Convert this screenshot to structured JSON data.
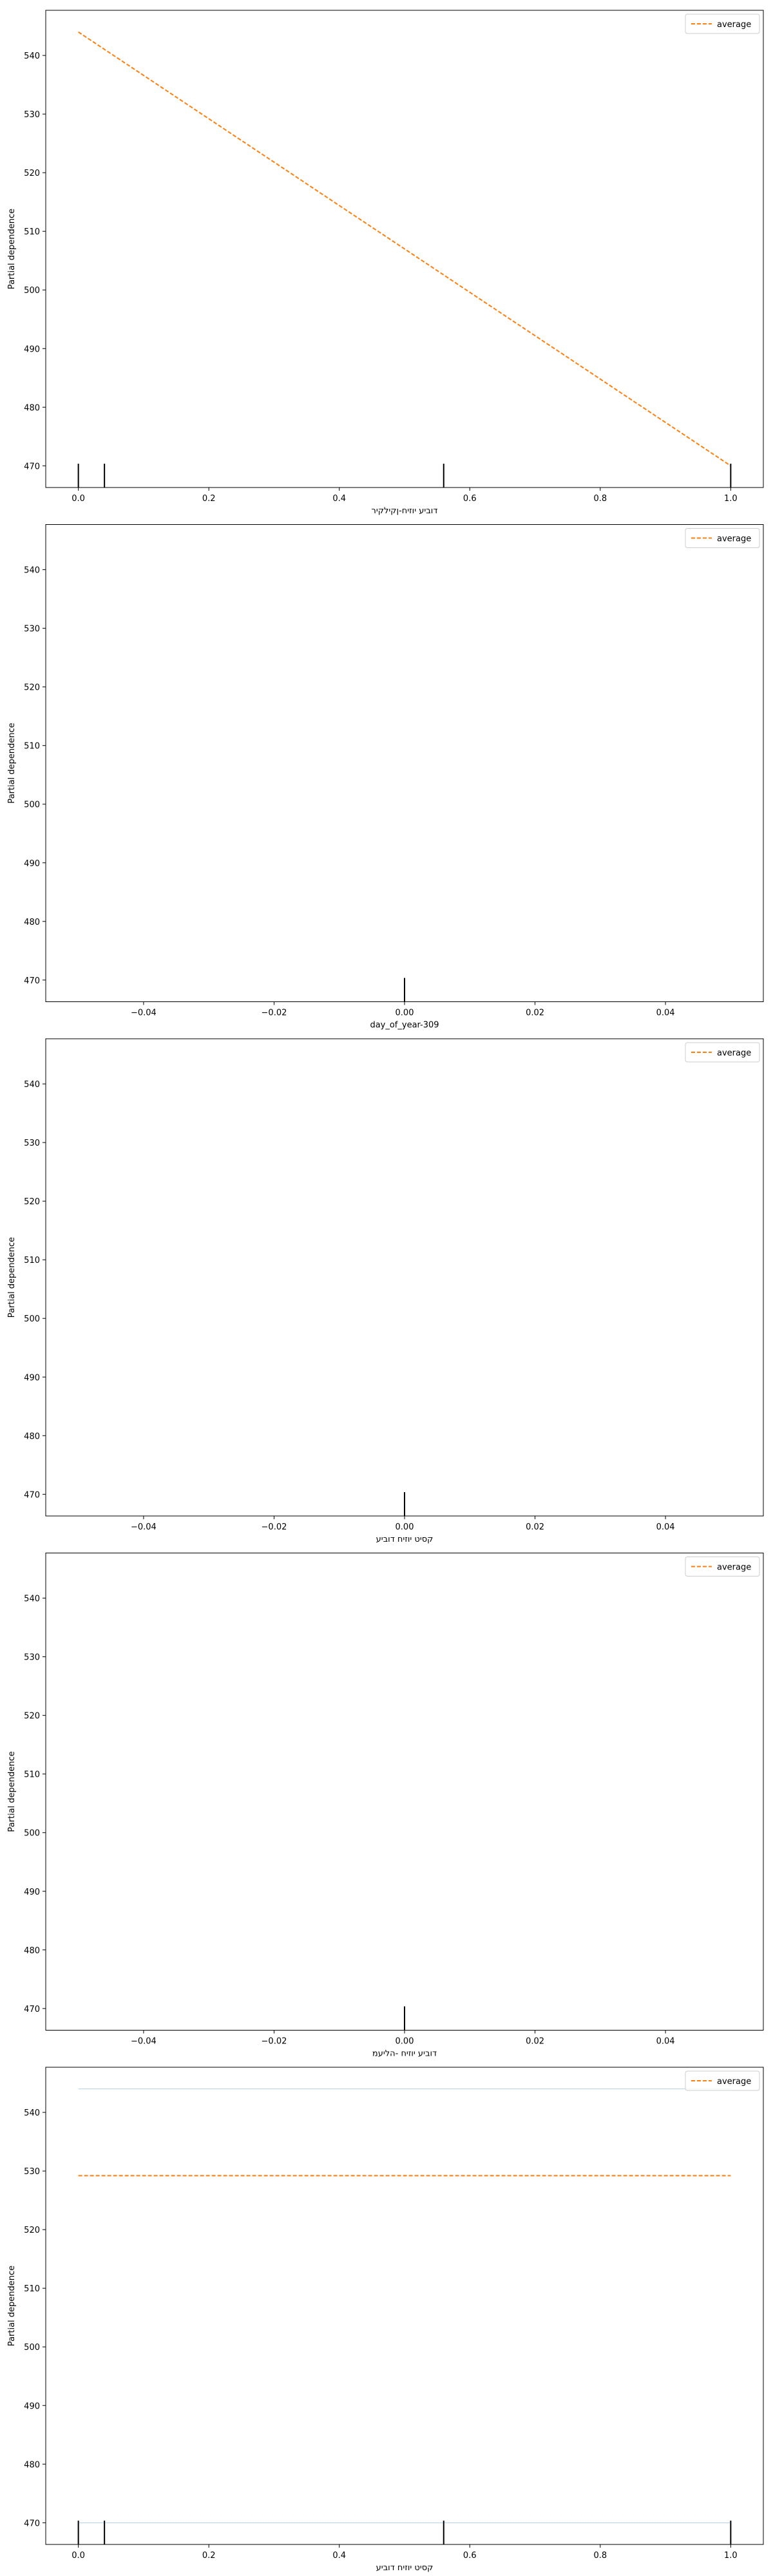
{
  "chart_data": [
    {
      "type": "line",
      "xlabel": "דוביע יוזיח-ןקילקיר",
      "ylabel": "Partial dependence",
      "xlim": [
        -0.05,
        1.05
      ],
      "ylim": [
        466.3,
        547.7
      ],
      "xticks": [
        "0.0",
        "0.2",
        "0.4",
        "0.6",
        "0.8",
        "1.0"
      ],
      "xtick_values": [
        0,
        0.2,
        0.4,
        0.6,
        0.8,
        1.0
      ],
      "yticks": [
        "470",
        "480",
        "490",
        "500",
        "510",
        "520",
        "530",
        "540"
      ],
      "ytick_values": [
        470,
        480,
        490,
        500,
        510,
        520,
        530,
        540
      ],
      "legend": {
        "position": "top-right",
        "entries": [
          "average"
        ]
      },
      "series": [
        {
          "name": "average",
          "style": "dashed",
          "color": "#ff7f0e",
          "x": [
            0,
            1
          ],
          "y": [
            544,
            470
          ]
        }
      ],
      "individual_lines": [],
      "rug": [
        0,
        0.04,
        0.56,
        1.0
      ]
    },
    {
      "type": "line",
      "xlabel": "day_of_year-309",
      "ylabel": "Partial dependence",
      "xlim": [
        -0.055,
        0.055
      ],
      "ylim": [
        466.3,
        547.7
      ],
      "xticks": [
        "−0.04",
        "−0.02",
        "0.00",
        "0.02",
        "0.04"
      ],
      "xtick_values": [
        -0.04,
        -0.02,
        0,
        0.02,
        0.04
      ],
      "yticks": [
        "470",
        "480",
        "490",
        "500",
        "510",
        "520",
        "530",
        "540"
      ],
      "ytick_values": [
        470,
        480,
        490,
        500,
        510,
        520,
        530,
        540
      ],
      "legend": {
        "position": "top-right",
        "entries": [
          "average"
        ]
      },
      "series": [
        {
          "name": "average",
          "style": "dashed",
          "color": "#ff7f0e",
          "x": [],
          "y": []
        }
      ],
      "individual_lines": [],
      "rug": [
        0
      ]
    },
    {
      "type": "line",
      "xlabel": "קסיט יוזיח דוביע",
      "ylabel": "Partial dependence",
      "xlim": [
        -0.055,
        0.055
      ],
      "ylim": [
        466.3,
        547.7
      ],
      "xticks": [
        "−0.04",
        "−0.02",
        "0.00",
        "0.02",
        "0.04"
      ],
      "xtick_values": [
        -0.04,
        -0.02,
        0,
        0.02,
        0.04
      ],
      "yticks": [
        "470",
        "480",
        "490",
        "500",
        "510",
        "520",
        "530",
        "540"
      ],
      "ytick_values": [
        470,
        480,
        490,
        500,
        510,
        520,
        530,
        540
      ],
      "legend": {
        "position": "top-right",
        "entries": [
          "average"
        ]
      },
      "series": [
        {
          "name": "average",
          "style": "dashed",
          "color": "#ff7f0e",
          "x": [],
          "y": []
        }
      ],
      "individual_lines": [],
      "rug": [
        0
      ]
    },
    {
      "type": "line",
      "xlabel": "דוביע יוזיח -הליעמ",
      "ylabel": "Partial dependence",
      "xlim": [
        -0.055,
        0.055
      ],
      "ylim": [
        466.3,
        547.7
      ],
      "xticks": [
        "−0.04",
        "−0.02",
        "0.00",
        "0.02",
        "0.04"
      ],
      "xtick_values": [
        -0.04,
        -0.02,
        0,
        0.02,
        0.04
      ],
      "yticks": [
        "470",
        "480",
        "490",
        "500",
        "510",
        "520",
        "530",
        "540"
      ],
      "ytick_values": [
        470,
        480,
        490,
        500,
        510,
        520,
        530,
        540
      ],
      "legend": {
        "position": "top-right",
        "entries": [
          "average"
        ]
      },
      "series": [
        {
          "name": "average",
          "style": "dashed",
          "color": "#ff7f0e",
          "x": [],
          "y": []
        }
      ],
      "individual_lines": [],
      "rug": [
        0
      ]
    },
    {
      "type": "line",
      "xlabel": "קסיט יוזיח דוביע",
      "ylabel": "Partial dependence",
      "xlim": [
        -0.05,
        1.05
      ],
      "ylim": [
        466.3,
        547.7
      ],
      "xticks": [
        "0.0",
        "0.2",
        "0.4",
        "0.6",
        "0.8",
        "1.0"
      ],
      "xtick_values": [
        0,
        0.2,
        0.4,
        0.6,
        0.8,
        1.0
      ],
      "yticks": [
        "470",
        "480",
        "490",
        "500",
        "510",
        "520",
        "530",
        "540"
      ],
      "ytick_values": [
        470,
        480,
        490,
        500,
        510,
        520,
        530,
        540
      ],
      "legend": {
        "position": "top-right",
        "entries": [
          "average"
        ]
      },
      "series": [
        {
          "name": "average",
          "style": "dashed",
          "color": "#ff7f0e",
          "x": [
            0,
            1
          ],
          "y": [
            529.2,
            529.2
          ]
        }
      ],
      "individual_lines": [
        {
          "color": "#1f77b4",
          "x": [
            0,
            1
          ],
          "y": [
            544,
            544
          ]
        },
        {
          "color": "#1f77b4",
          "x": [
            0,
            1
          ],
          "y": [
            470,
            470
          ]
        }
      ],
      "rug": [
        0,
        0.04,
        0.56,
        1.0
      ]
    }
  ]
}
